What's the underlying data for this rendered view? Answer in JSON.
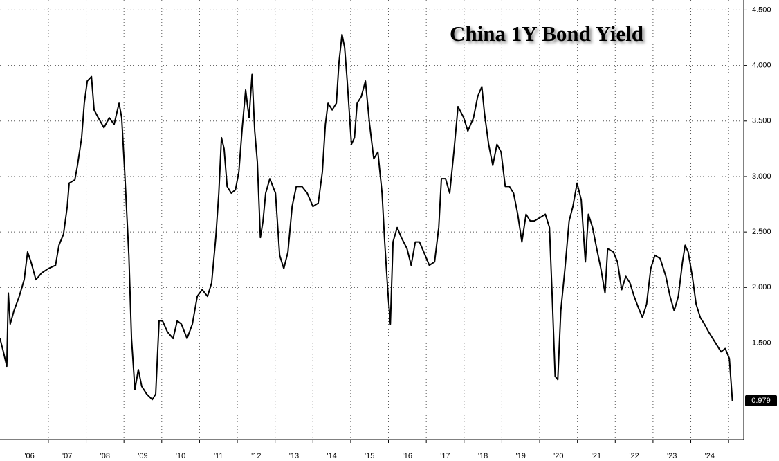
{
  "chart_data": {
    "type": "line",
    "title": "China 1Y Bond Yield",
    "series": [
      {
        "name": "China 1Y Bond Yield",
        "color": "#000000",
        "x": [
          2005.72,
          2005.81,
          2005.9,
          2005.94,
          2005.99,
          2006.09,
          2006.23,
          2006.36,
          2006.45,
          2006.54,
          2006.67,
          2006.82,
          2007.0,
          2007.19,
          2007.28,
          2007.4,
          2007.5,
          2007.55,
          2007.7,
          2007.77,
          2007.88,
          2007.95,
          2008.03,
          2008.14,
          2008.21,
          2008.32,
          2008.47,
          2008.61,
          2008.74,
          2008.87,
          2008.94,
          2009.02,
          2009.13,
          2009.2,
          2009.29,
          2009.38,
          2009.47,
          2009.6,
          2009.75,
          2009.84,
          2009.93,
          2010.02,
          2010.15,
          2010.3,
          2010.41,
          2010.52,
          2010.67,
          2010.81,
          2010.94,
          2011.07,
          2011.21,
          2011.32,
          2011.43,
          2011.51,
          2011.58,
          2011.65,
          2011.73,
          2011.84,
          2011.95,
          2012.04,
          2012.13,
          2012.22,
          2012.31,
          2012.39,
          2012.46,
          2012.53,
          2012.61,
          2012.68,
          2012.75,
          2012.86,
          2013.01,
          2013.12,
          2013.23,
          2013.34,
          2013.45,
          2013.56,
          2013.71,
          2013.85,
          2014.0,
          2014.14,
          2014.25,
          2014.33,
          2014.4,
          2014.51,
          2014.62,
          2014.69,
          2014.77,
          2014.84,
          2014.91,
          2015.02,
          2015.1,
          2015.17,
          2015.28,
          2015.39,
          2015.5,
          2015.61,
          2015.72,
          2015.83,
          2015.9,
          2015.98,
          2016.05,
          2016.12,
          2016.23,
          2016.34,
          2016.49,
          2016.6,
          2016.71,
          2016.82,
          2016.97,
          2017.08,
          2017.22,
          2017.33,
          2017.4,
          2017.51,
          2017.62,
          2017.73,
          2017.84,
          2017.99,
          2018.1,
          2018.25,
          2018.36,
          2018.47,
          2018.54,
          2018.65,
          2018.76,
          2018.87,
          2018.98,
          2019.09,
          2019.2,
          2019.31,
          2019.42,
          2019.53,
          2019.64,
          2019.75,
          2019.86,
          2020.01,
          2020.15,
          2020.26,
          2020.34,
          2020.41,
          2020.48,
          2020.56,
          2020.67,
          2020.78,
          2020.88,
          2020.99,
          2021.1,
          2021.21,
          2021.29,
          2021.4,
          2021.51,
          2021.62,
          2021.73,
          2021.8,
          2021.95,
          2022.06,
          2022.17,
          2022.28,
          2022.39,
          2022.5,
          2022.61,
          2022.72,
          2022.83,
          2022.94,
          2023.05,
          2023.19,
          2023.34,
          2023.45,
          2023.56,
          2023.67,
          2023.78,
          2023.85,
          2023.93,
          2024.04,
          2024.14,
          2024.25,
          2024.36,
          2024.47,
          2024.58,
          2024.69,
          2024.8,
          2024.91,
          2025.02,
          2025.1
        ],
        "values": [
          1.54,
          1.42,
          1.29,
          1.95,
          1.67,
          1.79,
          1.92,
          2.07,
          2.32,
          2.23,
          2.07,
          2.13,
          2.17,
          2.2,
          2.38,
          2.48,
          2.73,
          2.94,
          2.97,
          3.1,
          3.35,
          3.66,
          3.86,
          3.9,
          3.6,
          3.53,
          3.44,
          3.53,
          3.47,
          3.66,
          3.53,
          3.04,
          2.29,
          1.54,
          1.08,
          1.26,
          1.11,
          1.04,
          0.99,
          1.04,
          1.7,
          1.7,
          1.6,
          1.54,
          1.7,
          1.67,
          1.54,
          1.67,
          1.92,
          1.98,
          1.92,
          2.04,
          2.45,
          2.85,
          3.35,
          3.25,
          2.91,
          2.85,
          2.88,
          3.04,
          3.44,
          3.78,
          3.53,
          3.92,
          3.41,
          3.13,
          2.45,
          2.6,
          2.85,
          2.98,
          2.85,
          2.29,
          2.17,
          2.32,
          2.73,
          2.91,
          2.91,
          2.85,
          2.73,
          2.76,
          3.04,
          3.47,
          3.66,
          3.6,
          3.66,
          4.03,
          4.28,
          4.16,
          3.85,
          3.29,
          3.35,
          3.66,
          3.72,
          3.86,
          3.47,
          3.16,
          3.22,
          2.85,
          2.41,
          1.98,
          1.67,
          2.41,
          2.54,
          2.45,
          2.35,
          2.2,
          2.41,
          2.41,
          2.29,
          2.2,
          2.23,
          2.54,
          2.98,
          2.98,
          2.85,
          3.22,
          3.63,
          3.53,
          3.41,
          3.53,
          3.72,
          3.81,
          3.57,
          3.29,
          3.1,
          3.29,
          3.22,
          2.91,
          2.91,
          2.85,
          2.66,
          2.41,
          2.66,
          2.6,
          2.6,
          2.63,
          2.66,
          2.54,
          1.85,
          1.2,
          1.17,
          1.79,
          2.17,
          2.6,
          2.73,
          2.94,
          2.79,
          2.23,
          2.66,
          2.54,
          2.35,
          2.17,
          1.95,
          2.35,
          2.32,
          2.23,
          1.98,
          2.1,
          2.04,
          1.92,
          1.82,
          1.73,
          1.85,
          2.17,
          2.29,
          2.26,
          2.1,
          1.92,
          1.79,
          1.92,
          2.23,
          2.38,
          2.32,
          2.1,
          1.85,
          1.73,
          1.67,
          1.6,
          1.54,
          1.48,
          1.42,
          1.45,
          1.36,
          0.979
        ]
      }
    ],
    "xlim": [
      2005.72,
      2025.4
    ],
    "ylim": [
      0.63,
      4.59
    ],
    "yticks": [
      {
        "value": 1.5,
        "label": "1.500"
      },
      {
        "value": 2.0,
        "label": "2.000"
      },
      {
        "value": 2.5,
        "label": "2.500"
      },
      {
        "value": 3.0,
        "label": "3.000"
      },
      {
        "value": 3.5,
        "label": "3.500"
      },
      {
        "value": 4.0,
        "label": "4.000"
      },
      {
        "value": 4.5,
        "label": "4.500"
      }
    ],
    "xticks": [
      {
        "value": 2006.5,
        "label": "'06"
      },
      {
        "value": 2007.5,
        "label": "'07"
      },
      {
        "value": 2008.5,
        "label": "'08"
      },
      {
        "value": 2009.5,
        "label": "'09"
      },
      {
        "value": 2010.5,
        "label": "'10"
      },
      {
        "value": 2011.5,
        "label": "'11"
      },
      {
        "value": 2012.5,
        "label": "'12"
      },
      {
        "value": 2013.5,
        "label": "'13"
      },
      {
        "value": 2014.5,
        "label": "'14"
      },
      {
        "value": 2015.5,
        "label": "'15"
      },
      {
        "value": 2016.5,
        "label": "'16"
      },
      {
        "value": 2017.5,
        "label": "'17"
      },
      {
        "value": 2018.5,
        "label": "'18"
      },
      {
        "value": 2019.5,
        "label": "'19"
      },
      {
        "value": 2020.5,
        "label": "'20"
      },
      {
        "value": 2021.5,
        "label": "'21"
      },
      {
        "value": 2022.5,
        "label": "'22"
      },
      {
        "value": 2023.5,
        "label": "'23"
      },
      {
        "value": 2024.5,
        "label": "'24"
      }
    ],
    "xgrid": [
      2007,
      2008,
      2009,
      2010,
      2011,
      2012,
      2013,
      2014,
      2015,
      2016,
      2017,
      2018,
      2019,
      2020,
      2021,
      2022,
      2023,
      2024,
      2025
    ],
    "grid": true,
    "y_axis_side": "right"
  }
}
